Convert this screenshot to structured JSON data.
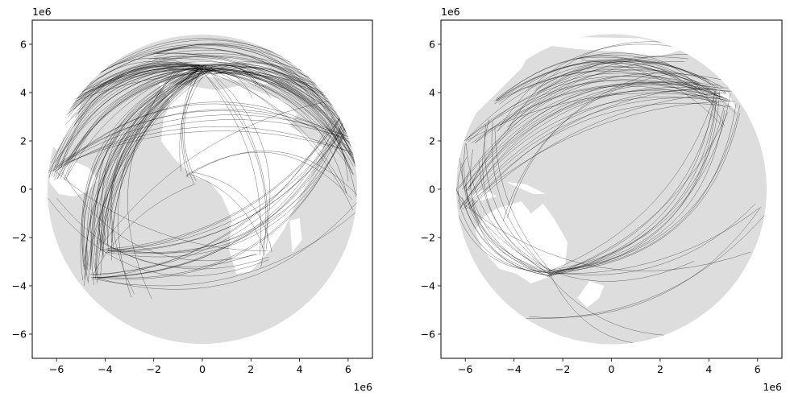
{
  "chart_data": [
    {
      "type": "map",
      "title": "",
      "xlabel": "",
      "ylabel": "",
      "xlim": [
        -7000000,
        7000000
      ],
      "ylim": [
        -7000000,
        7000000
      ],
      "xticks": [
        -6000000,
        -4000000,
        -2000000,
        0,
        2000000,
        4000000,
        6000000
      ],
      "yticks": [
        -6000000,
        -4000000,
        -2000000,
        0,
        2000000,
        4000000,
        6000000
      ],
      "xtick_labels": [
        "−6",
        "−4",
        "−2",
        "0",
        "2",
        "4",
        "6"
      ],
      "ytick_labels": [
        "−6",
        "−4",
        "−2",
        "0",
        "2",
        "4",
        "6"
      ],
      "x_offset_text": "1e6",
      "y_offset_text": "1e6",
      "globe_radius": 6371000,
      "grid": false,
      "colors": {
        "land": "#ffffff",
        "ocean": "#dddddd",
        "routes": "#000000"
      },
      "hubs": [
        {
          "x": 0,
          "y": 5000000
        },
        {
          "x": 2600000,
          "y": -2800000
        },
        {
          "x": -4500000,
          "y": -3600000
        },
        {
          "x": -450000,
          "y": 600000
        }
      ]
    },
    {
      "type": "map",
      "title": "",
      "xlabel": "",
      "ylabel": "",
      "xlim": [
        -7000000,
        7000000
      ],
      "ylim": [
        -7000000,
        7000000
      ],
      "xticks": [
        -6000000,
        -4000000,
        -2000000,
        0,
        2000000,
        4000000,
        6000000
      ],
      "yticks": [
        -6000000,
        -4000000,
        -2000000,
        0,
        2000000,
        4000000,
        6000000
      ],
      "xtick_labels": [
        "−6",
        "−4",
        "−2",
        "0",
        "2",
        "4",
        "6"
      ],
      "ytick_labels": [
        "−6",
        "−4",
        "−2",
        "0",
        "2",
        "4",
        "6"
      ],
      "x_offset_text": "1e6",
      "y_offset_text": "1e6",
      "globe_radius": 6371000,
      "grid": false,
      "colors": {
        "land": "#ffffff",
        "ocean": "#dddddd",
        "routes": "#000000"
      },
      "hubs": [
        {
          "x": -2500000,
          "y": -3500000
        },
        {
          "x": 4600000,
          "y": 3700000
        },
        {
          "x": -6000000,
          "y": -700000
        }
      ]
    }
  ]
}
